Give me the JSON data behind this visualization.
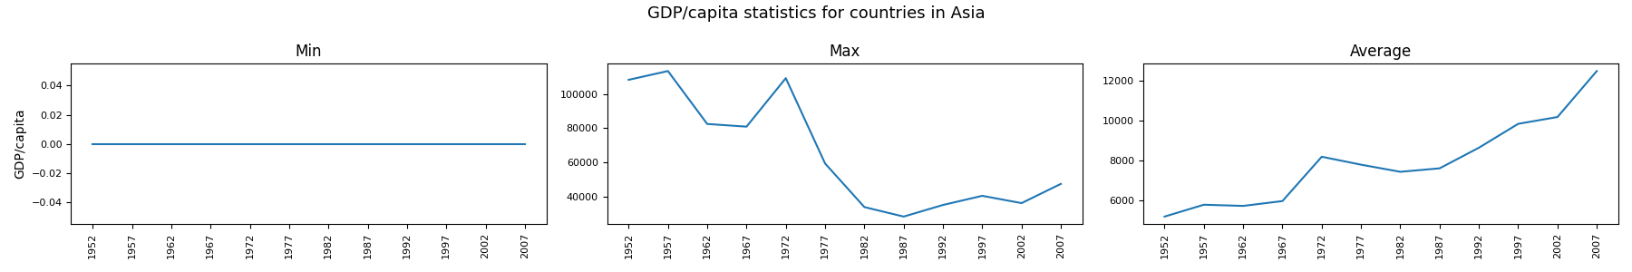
{
  "title": "GDP/capita statistics for countries in Asia",
  "years": [
    1952,
    1957,
    1962,
    1967,
    1972,
    1977,
    1982,
    1987,
    1992,
    1997,
    2002,
    2007
  ],
  "min_values": [
    0.0,
    0.0,
    0.0,
    0.0,
    0.0,
    0.0,
    0.0,
    0.0,
    0.0,
    0.0,
    0.0,
    0.0
  ],
  "max_values": [
    108382.0,
    113523.0,
    82472.0,
    80894.0,
    109347.0,
    59265.0,
    33693.0,
    28118.0,
    34933.0,
    40301.0,
    36023.0,
    47306.0
  ],
  "avg_values": [
    5195.0,
    5788.0,
    5729.0,
    5971.0,
    8187.0,
    7791.0,
    7434.0,
    7608.0,
    8639.0,
    9834.0,
    10174.0,
    12473.0
  ],
  "subplot_titles": [
    "Min",
    "Max",
    "Average"
  ],
  "ylabel": "GDP/capita",
  "line_color": "#1f77b4",
  "xtick_labels": [
    "1952",
    "1957",
    "1962",
    "1967",
    "1972",
    "1977",
    "1982",
    "1987",
    "1992",
    "1997",
    "2002",
    "2007"
  ],
  "fig_width": 18.0,
  "fig_height": 3.0,
  "title_fontsize": 13
}
